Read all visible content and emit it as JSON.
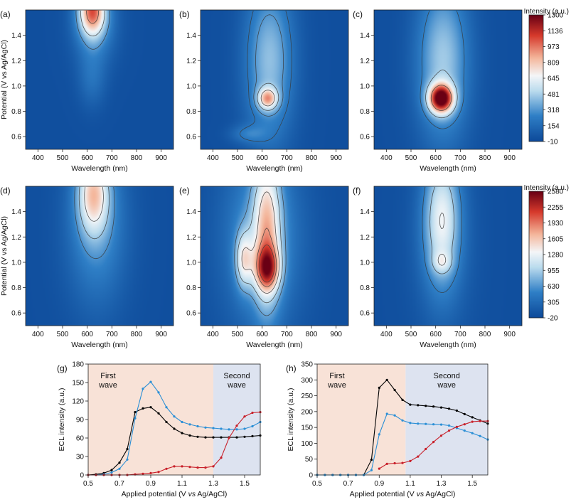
{
  "colors": {
    "deep_blue": "#0d4a9a",
    "mid_blue": "#2f7fc6",
    "light_blue": "#bcdcee",
    "white": "#f4f6f8",
    "light_red": "#f4b79c",
    "red": "#d6392c",
    "dark_red": "#6a0014",
    "contour": "#3a3a3a",
    "first_wave_bg": "#f8e2d7",
    "second_wave_bg": "#dde3f0",
    "series_black": "#000000",
    "series_blue": "#2b8fd6",
    "series_red": "#c8202a"
  },
  "chart_data": [
    {
      "id": "a",
      "panel_label": "(a)",
      "type": "heatmap",
      "xlabel": "Wavelength (nm)",
      "ylabel": "Potential (V vs Ag/AgCl)",
      "x_range": [
        350,
        950
      ],
      "y_range": [
        0.5,
        1.6
      ],
      "x_ticks": [
        "400",
        "500",
        "600",
        "700",
        "800",
        "900"
      ],
      "y_ticks": [
        "0.6",
        "0.8",
        "1.0",
        "1.2",
        "1.4"
      ],
      "colorbar_group": 1,
      "features": [
        {
          "wavelength": 620,
          "potential": 1.6,
          "s_wl": 38,
          "s_pot": 0.14,
          "amplitude": 780
        },
        {
          "wavelength": 630,
          "potential": 1.5,
          "s_wl": 60,
          "s_pot": 0.22,
          "amplitude": 300
        },
        {
          "wavelength": 620,
          "potential": 1.05,
          "s_wl": 40,
          "s_pot": 0.16,
          "amplitude": 150
        }
      ],
      "contour_levels": [
        320,
        560,
        900
      ]
    },
    {
      "id": "b",
      "panel_label": "(b)",
      "type": "heatmap",
      "xlabel": "Wavelength (nm)",
      "ylabel": "",
      "x_range": [
        350,
        950
      ],
      "y_range": [
        0.5,
        1.6
      ],
      "x_ticks": [
        "400",
        "500",
        "600",
        "700",
        "800",
        "900"
      ],
      "y_ticks": [
        "0.6",
        "0.8",
        "1.0",
        "1.2",
        "1.4"
      ],
      "colorbar_group": 1,
      "features": [
        {
          "wavelength": 622,
          "potential": 0.9,
          "s_wl": 28,
          "s_pot": 0.06,
          "amplitude": 600
        },
        {
          "wavelength": 630,
          "potential": 1.2,
          "s_wl": 70,
          "s_pot": 0.45,
          "amplitude": 420
        },
        {
          "wavelength": 540,
          "potential": 0.62,
          "s_wl": 50,
          "s_pot": 0.05,
          "amplitude": 170
        }
      ],
      "contour_levels": [
        200,
        320,
        480,
        700
      ]
    },
    {
      "id": "c",
      "panel_label": "(c)",
      "type": "heatmap",
      "xlabel": "Wavelength (nm)",
      "ylabel": "",
      "x_range": [
        350,
        950
      ],
      "y_range": [
        0.5,
        1.6
      ],
      "x_ticks": [
        "400",
        "500",
        "600",
        "700",
        "800",
        "900"
      ],
      "y_ticks": [
        "0.6",
        "0.8",
        "1.0",
        "1.2",
        "1.4"
      ],
      "colorbar_group": 1,
      "features": [
        {
          "wavelength": 622,
          "potential": 0.9,
          "s_wl": 35,
          "s_pot": 0.08,
          "amplitude": 1150
        },
        {
          "wavelength": 630,
          "potential": 1.2,
          "s_wl": 75,
          "s_pot": 0.45,
          "amplitude": 450
        }
      ],
      "contour_levels": [
        250,
        480,
        900
      ]
    },
    {
      "id": "d",
      "panel_label": "(d)",
      "type": "heatmap",
      "xlabel": "Wavelength (nm)",
      "ylabel": "Potential (V vs Ag/AgCl)",
      "x_range": [
        350,
        950
      ],
      "y_range": [
        0.5,
        1.6
      ],
      "x_ticks": [
        "400",
        "500",
        "600",
        "700",
        "800",
        "900"
      ],
      "y_ticks": [
        "0.6",
        "0.8",
        "1.0",
        "1.2",
        "1.4"
      ],
      "colorbar_group": 2,
      "features": [
        {
          "wavelength": 625,
          "potential": 1.55,
          "s_wl": 45,
          "s_pot": 0.22,
          "amplitude": 1150
        },
        {
          "wavelength": 640,
          "potential": 1.3,
          "s_wl": 85,
          "s_pot": 0.45,
          "amplitude": 600
        }
      ],
      "contour_levels": [
        600,
        900,
        1300
      ]
    },
    {
      "id": "e",
      "panel_label": "(e)",
      "type": "heatmap",
      "xlabel": "Wavelength (nm)",
      "ylabel": "",
      "x_range": [
        350,
        950
      ],
      "y_range": [
        0.5,
        1.6
      ],
      "x_ticks": [
        "400",
        "500",
        "600",
        "700",
        "800",
        "900"
      ],
      "y_ticks": [
        "0.6",
        "0.8",
        "1.0",
        "1.2",
        "1.4"
      ],
      "colorbar_group": 2,
      "features": [
        {
          "wavelength": 620,
          "potential": 0.95,
          "s_wl": 35,
          "s_pot": 0.12,
          "amplitude": 1250
        },
        {
          "wavelength": 620,
          "potential": 1.25,
          "s_wl": 40,
          "s_pot": 0.45,
          "amplitude": 1100
        },
        {
          "wavelength": 525,
          "potential": 1.02,
          "s_wl": 25,
          "s_pot": 0.16,
          "amplitude": 900
        },
        {
          "wavelength": 600,
          "potential": 1.2,
          "s_wl": 110,
          "s_pot": 0.5,
          "amplitude": 650
        }
      ],
      "contour_levels": [
        700,
        1000,
        1400,
        1800,
        2100
      ]
    },
    {
      "id": "f",
      "panel_label": "(f)",
      "type": "heatmap",
      "xlabel": "Wavelength (nm)",
      "ylabel": "",
      "x_range": [
        350,
        950
      ],
      "y_range": [
        0.5,
        1.6
      ],
      "x_ticks": [
        "400",
        "500",
        "600",
        "700",
        "800",
        "900"
      ],
      "y_ticks": [
        "0.6",
        "0.8",
        "1.0",
        "1.2",
        "1.4"
      ],
      "colorbar_group": 2,
      "features": [
        {
          "wavelength": 625,
          "potential": 1.0,
          "s_wl": 28,
          "s_pot": 0.06,
          "amplitude": 450
        },
        {
          "wavelength": 625,
          "potential": 1.35,
          "s_wl": 50,
          "s_pot": 0.35,
          "amplitude": 950
        },
        {
          "wavelength": 630,
          "potential": 1.2,
          "s_wl": 80,
          "s_pot": 0.5,
          "amplitude": 350
        }
      ],
      "contour_levels": [
        500,
        900,
        1300
      ]
    },
    {
      "id": "colorbar_top",
      "type": "colorbar",
      "title": "Intensity (a.u.)",
      "range": [
        -10,
        1300
      ],
      "tick_labels": [
        "1300",
        "1136",
        "973",
        "809",
        "645",
        "481",
        "318",
        "154",
        "-10"
      ]
    },
    {
      "id": "colorbar_bottom",
      "type": "colorbar",
      "title": "Intensity (a.u.)",
      "range": [
        -20,
        2580
      ],
      "tick_labels": [
        "2580",
        "2255",
        "1930",
        "1605",
        "1280",
        "955",
        "630",
        "305",
        "-20"
      ]
    },
    {
      "id": "g",
      "panel_label": "(g)",
      "type": "line",
      "xlabel_parts": [
        "Applied potential (V ",
        "vs",
        " Ag/AgCl)"
      ],
      "ylabel": "ECL intensity (a.u.)",
      "xlim": [
        0.5,
        1.6
      ],
      "ylim": [
        0,
        180
      ],
      "x_ticks": [
        "0.5",
        "0.7",
        "0.9",
        "1.1",
        "1.3",
        "1.5"
      ],
      "y_ticks": [
        "0",
        "30",
        "60",
        "90",
        "120",
        "150",
        "180"
      ],
      "regions": [
        {
          "label_lines": [
            "First",
            "wave"
          ],
          "from": 0.5,
          "to": 1.3,
          "kind": "first"
        },
        {
          "label_lines": [
            "Second",
            "wave"
          ],
          "from": 1.3,
          "to": 1.6,
          "kind": "second"
        }
      ],
      "x": [
        0.5,
        0.55,
        0.6,
        0.65,
        0.7,
        0.75,
        0.8,
        0.85,
        0.9,
        0.95,
        1.0,
        1.05,
        1.1,
        1.15,
        1.2,
        1.25,
        1.3,
        1.35,
        1.4,
        1.45,
        1.5,
        1.55,
        1.6
      ],
      "series": [
        {
          "name": "black",
          "color_key": "series_black",
          "values": [
            0,
            1,
            3,
            8,
            20,
            42,
            102,
            108,
            110,
            100,
            86,
            75,
            68,
            64,
            62,
            61,
            61,
            61,
            61,
            61,
            62,
            63,
            64
          ]
        },
        {
          "name": "blue",
          "color_key": "series_blue",
          "values": [
            0,
            0,
            1,
            4,
            10,
            25,
            92,
            140,
            151,
            134,
            110,
            95,
            86,
            82,
            79,
            77,
            76,
            75,
            74,
            74,
            75,
            79,
            86
          ]
        },
        {
          "name": "red",
          "color_key": "series_red",
          "values": [
            0,
            0,
            0,
            0,
            0,
            0,
            1,
            2,
            3,
            5,
            10,
            14,
            14,
            13,
            12,
            12,
            14,
            28,
            60,
            80,
            95,
            101,
            102
          ]
        }
      ]
    },
    {
      "id": "h",
      "panel_label": "(h)",
      "type": "line",
      "xlabel_parts": [
        "Applied potential (V ",
        "vs",
        " Ag/AgCl)"
      ],
      "ylabel": "ECL intensity (a.u.)",
      "xlim": [
        0.5,
        1.6
      ],
      "ylim": [
        0,
        350
      ],
      "x_ticks": [
        "0.5",
        "0.7",
        "0.9",
        "1.1",
        "1.3",
        "1.5"
      ],
      "y_ticks": [
        "0",
        "50",
        "100",
        "150",
        "200",
        "250",
        "300",
        "350"
      ],
      "regions": [
        {
          "label_lines": [
            "First",
            "wave"
          ],
          "from": 0.5,
          "to": 1.07,
          "kind": "first"
        },
        {
          "label_lines": [
            "Second",
            "wave"
          ],
          "from": 1.07,
          "to": 1.6,
          "kind": "second"
        }
      ],
      "series": [
        {
          "name": "black",
          "color_key": "series_black",
          "x": [
            0.5,
            0.55,
            0.6,
            0.65,
            0.7,
            0.75,
            0.8,
            0.85,
            0.9,
            0.95,
            1.0,
            1.05,
            1.1,
            1.15,
            1.2,
            1.25,
            1.3,
            1.35,
            1.4,
            1.45,
            1.5,
            1.55,
            1.6
          ],
          "values": [
            0,
            0,
            0,
            0,
            0,
            0,
            0,
            48,
            275,
            300,
            268,
            237,
            222,
            220,
            218,
            216,
            213,
            209,
            203,
            192,
            182,
            172,
            162
          ]
        },
        {
          "name": "blue",
          "color_key": "series_blue",
          "x": [
            0.5,
            0.55,
            0.6,
            0.65,
            0.7,
            0.75,
            0.8,
            0.85,
            0.9,
            0.95,
            1.0,
            1.05,
            1.1,
            1.15,
            1.2,
            1.25,
            1.3,
            1.35,
            1.4,
            1.45,
            1.5,
            1.55,
            1.6
          ],
          "values": [
            0,
            0,
            0,
            0,
            0,
            0,
            0,
            15,
            128,
            193,
            188,
            172,
            164,
            162,
            161,
            160,
            159,
            156,
            148,
            140,
            132,
            123,
            112
          ]
        },
        {
          "name": "red",
          "color_key": "series_red",
          "x": [
            0.9,
            0.95,
            1.0,
            1.05,
            1.1,
            1.15,
            1.2,
            1.25,
            1.3,
            1.35,
            1.4,
            1.45,
            1.5,
            1.55,
            1.6
          ],
          "values": [
            20,
            35,
            37,
            38,
            44,
            58,
            82,
            104,
            124,
            140,
            152,
            160,
            168,
            170,
            170
          ]
        }
      ]
    }
  ]
}
